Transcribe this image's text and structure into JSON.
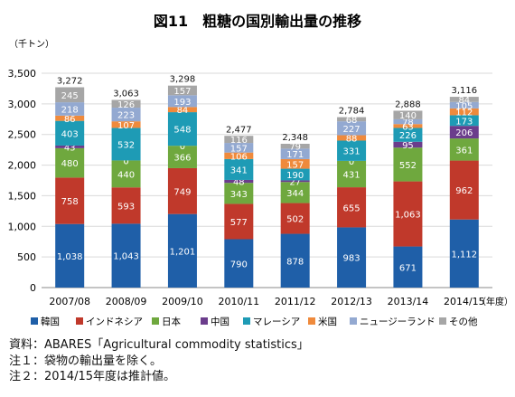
{
  "chart_data": {
    "type": "bar",
    "stacked": true,
    "title": "図11　粗糖の国別輸出量の推移",
    "ylabel": "（千トン）",
    "xlabel": "（年度）",
    "ylim": [
      0,
      3500
    ],
    "yticks": [
      0,
      500,
      1000,
      1500,
      2000,
      2500,
      3000,
      3500
    ],
    "ytick_labels": [
      "0",
      "500",
      "1,000",
      "1,500",
      "2,000",
      "2,500",
      "3,000",
      "3,500"
    ],
    "grid": true,
    "legend_position": "bottom",
    "categories": [
      "2007/08",
      "2008/09",
      "2009/10",
      "2010/11",
      "2011/12",
      "2012/13",
      "2013/14",
      "2014/15"
    ],
    "totals": [
      3272,
      3063,
      3298,
      2477,
      2348,
      2784,
      2888,
      3116
    ],
    "total_labels": [
      "3,272",
      "3,063",
      "3,298",
      "2,477",
      "2,348",
      "2,784",
      "2,888",
      "3,116"
    ],
    "series": [
      {
        "name": "韓国",
        "color": "#1f5fa8",
        "values": [
          1038,
          1043,
          1201,
          790,
          878,
          983,
          671,
          1112
        ],
        "labels": [
          "1,038",
          "1,043",
          "1,201",
          "790",
          "878",
          "983",
          "671",
          "1,112"
        ]
      },
      {
        "name": "インドネシア",
        "color": "#c0392b",
        "values": [
          758,
          593,
          749,
          577,
          502,
          655,
          1063,
          962
        ],
        "labels": [
          "758",
          "593",
          "749",
          "577",
          "502",
          "655",
          "1,063",
          "962"
        ]
      },
      {
        "name": "日本",
        "color": "#6fa83e",
        "values": [
          480,
          440,
          366,
          343,
          344,
          431,
          552,
          361
        ],
        "labels": [
          "480",
          "440",
          "366",
          "343",
          "344",
          "431",
          "552",
          "361"
        ]
      },
      {
        "name": "中国",
        "color": "#6b3d8c",
        "values": [
          43,
          0,
          0,
          48,
          27,
          0,
          95,
          206
        ],
        "labels": [
          "43",
          "0",
          "0",
          "48",
          "27",
          "0",
          "95",
          "206"
        ]
      },
      {
        "name": "マレーシア",
        "color": "#1e9bb5",
        "values": [
          403,
          532,
          548,
          341,
          190,
          331,
          226,
          173
        ],
        "labels": [
          "403",
          "532",
          "548",
          "341",
          "190",
          "331",
          "226",
          "173"
        ]
      },
      {
        "name": "米国",
        "color": "#ef8a3c",
        "values": [
          86,
          107,
          84,
          106,
          157,
          88,
          63,
          112
        ],
        "labels": [
          "86",
          "107",
          "84",
          "106",
          "157",
          "88",
          "63",
          "112"
        ]
      },
      {
        "name": "ニュージーランド",
        "color": "#93a9d1",
        "values": [
          218,
          223,
          193,
          157,
          171,
          227,
          78,
          105
        ],
        "labels": [
          "218",
          "223",
          "193",
          "157",
          "171",
          "227",
          "78",
          "105"
        ]
      },
      {
        "name": "その他",
        "color": "#a6a6a6",
        "values": [
          245,
          126,
          157,
          116,
          79,
          68,
          140,
          84
        ],
        "labels": [
          "245",
          "126",
          "157",
          "116",
          "79",
          "68",
          "140",
          "84"
        ]
      }
    ]
  },
  "notes": [
    "資料：ABARES「Agricultural commodity statistics」",
    "注１：袋物の輸出量を除く。",
    "注２：2014/15年度は推計値。"
  ]
}
